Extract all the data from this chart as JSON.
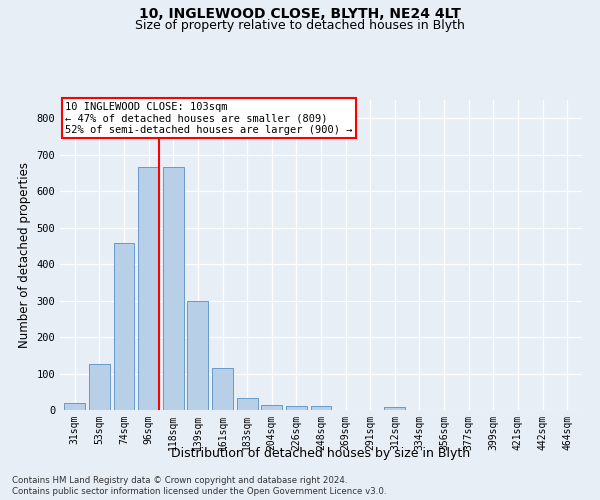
{
  "title1": "10, INGLEWOOD CLOSE, BLYTH, NE24 4LT",
  "title2": "Size of property relative to detached houses in Blyth",
  "xlabel": "Distribution of detached houses by size in Blyth",
  "ylabel": "Number of detached properties",
  "footnote1": "Contains HM Land Registry data © Crown copyright and database right 2024.",
  "footnote2": "Contains public sector information licensed under the Open Government Licence v3.0.",
  "categories": [
    "31sqm",
    "53sqm",
    "74sqm",
    "96sqm",
    "118sqm",
    "139sqm",
    "161sqm",
    "183sqm",
    "204sqm",
    "226sqm",
    "248sqm",
    "269sqm",
    "291sqm",
    "312sqm",
    "334sqm",
    "356sqm",
    "377sqm",
    "399sqm",
    "421sqm",
    "442sqm",
    "464sqm"
  ],
  "values": [
    18,
    125,
    458,
    665,
    665,
    300,
    115,
    32,
    14,
    12,
    10,
    0,
    0,
    8,
    0,
    0,
    0,
    0,
    0,
    0,
    0
  ],
  "bar_color": "#b8cfe8",
  "bar_edge_color": "#6699cc",
  "annotation_line1": "10 INGLEWOOD CLOSE: 103sqm",
  "annotation_line2": "← 47% of detached houses are smaller (809)",
  "annotation_line3": "52% of semi-detached houses are larger (900) →",
  "red_line_x": 3.425,
  "ylim": [
    0,
    850
  ],
  "yticks": [
    0,
    100,
    200,
    300,
    400,
    500,
    600,
    700,
    800
  ],
  "bg_color": "#e8eef6",
  "plot_bg_color": "#e8eef6",
  "grid_color": "#ffffff",
  "title_fontsize": 10,
  "subtitle_fontsize": 9,
  "axis_label_fontsize": 8.5,
  "tick_fontsize": 7,
  "annotation_fontsize": 7.5
}
